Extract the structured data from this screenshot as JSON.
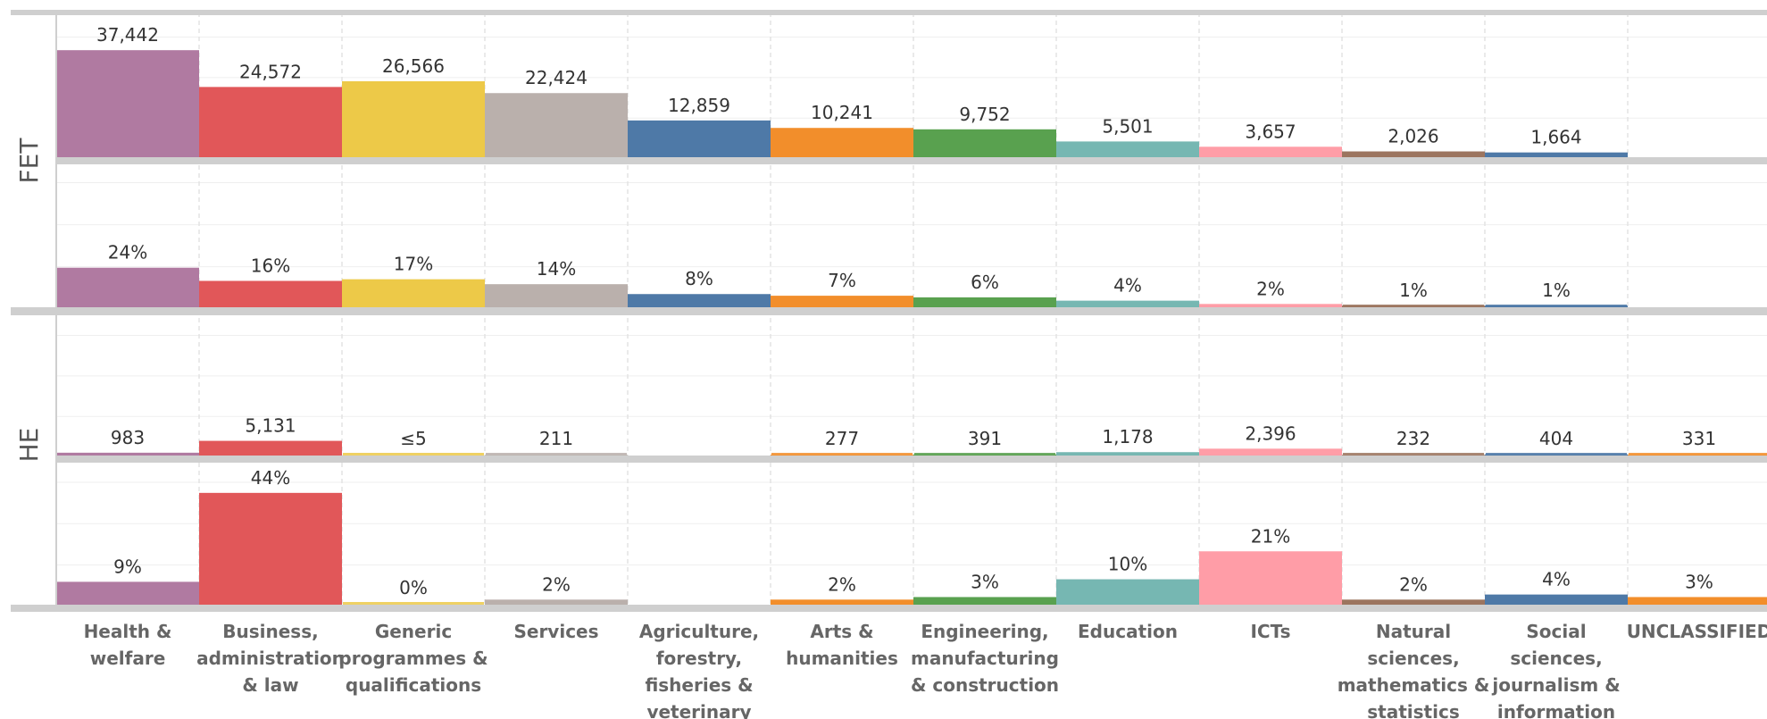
{
  "chart_data": {
    "type": "bar",
    "row_labels": [
      "FET",
      "HE"
    ],
    "categories": [
      "Health & welfare",
      "Business, administration & law",
      "Generic programmes & qualifications",
      "Services",
      "Agriculture, forestry, fisheries & veterinary",
      "Arts & humanities",
      "Engineering, manufacturing & construction",
      "Education",
      "ICTs",
      "Natural sciences, mathematics & statistics",
      "Social sciences, journalism & information",
      "UNCLASSIFIED"
    ],
    "category_lines": [
      [
        "Health &",
        "welfare"
      ],
      [
        "Business,",
        "administration",
        "& law"
      ],
      [
        "Generic",
        "programmes &",
        "qualifications"
      ],
      [
        "Services"
      ],
      [
        "Agriculture,",
        "forestry,",
        "fisheries &",
        "veterinary"
      ],
      [
        "Arts &",
        "humanities"
      ],
      [
        "Engineering,",
        "manufacturing",
        "& construction"
      ],
      [
        "Education"
      ],
      [
        "ICTs"
      ],
      [
        "Natural",
        "sciences,",
        "mathematics &",
        "statistics"
      ],
      [
        "Social",
        "sciences,",
        "journalism &",
        "information"
      ],
      [
        "UNCLASSIFIED"
      ]
    ],
    "colors": [
      "#b07aa1",
      "#e15759",
      "#edc948",
      "#bab0ac",
      "#4e79a7",
      "#f28e2b",
      "#59a14f",
      "#76b7b2",
      "#ff9da7",
      "#9c755f",
      "#4e79a7",
      "#f28e2b"
    ],
    "panels": [
      {
        "name": "FET count",
        "values": [
          37442,
          24572,
          26566,
          22424,
          12859,
          10241,
          9752,
          5501,
          3657,
          2026,
          1664,
          null
        ],
        "labels": [
          "37,442",
          "24,572",
          "26,566",
          "22,424",
          "12,859",
          "10,241",
          "9,752",
          "5,501",
          "3,657",
          "2,026",
          "1,664",
          ""
        ],
        "ylim": [
          0,
          40000
        ]
      },
      {
        "name": "FET share",
        "values": [
          24,
          16,
          17,
          14,
          8,
          7,
          6,
          4,
          2,
          1,
          1,
          null
        ],
        "labels": [
          "24%",
          "16%",
          "17%",
          "14%",
          "8%",
          "7%",
          "6%",
          "4%",
          "2%",
          "1%",
          "1%",
          ""
        ],
        "ylim": [
          0,
          45
        ]
      },
      {
        "name": "HE count",
        "values": [
          983,
          5131,
          5,
          211,
          null,
          277,
          391,
          1178,
          2396,
          232,
          404,
          331
        ],
        "labels": [
          "983",
          "5,131",
          "≤5",
          "211",
          "",
          "277",
          "391",
          "1,178",
          "2,396",
          "232",
          "404",
          "331"
        ],
        "ylim": [
          0,
          40000
        ]
      },
      {
        "name": "HE share",
        "values": [
          9,
          44,
          0,
          2,
          null,
          2,
          3,
          10,
          21,
          2,
          4,
          3
        ],
        "labels": [
          "9%",
          "44%",
          "0%",
          "2%",
          "",
          "2%",
          "3%",
          "10%",
          "21%",
          "2%",
          "4%",
          "3%"
        ],
        "ylim": [
          0,
          45
        ]
      }
    ],
    "grid": true,
    "legend": "none"
  }
}
